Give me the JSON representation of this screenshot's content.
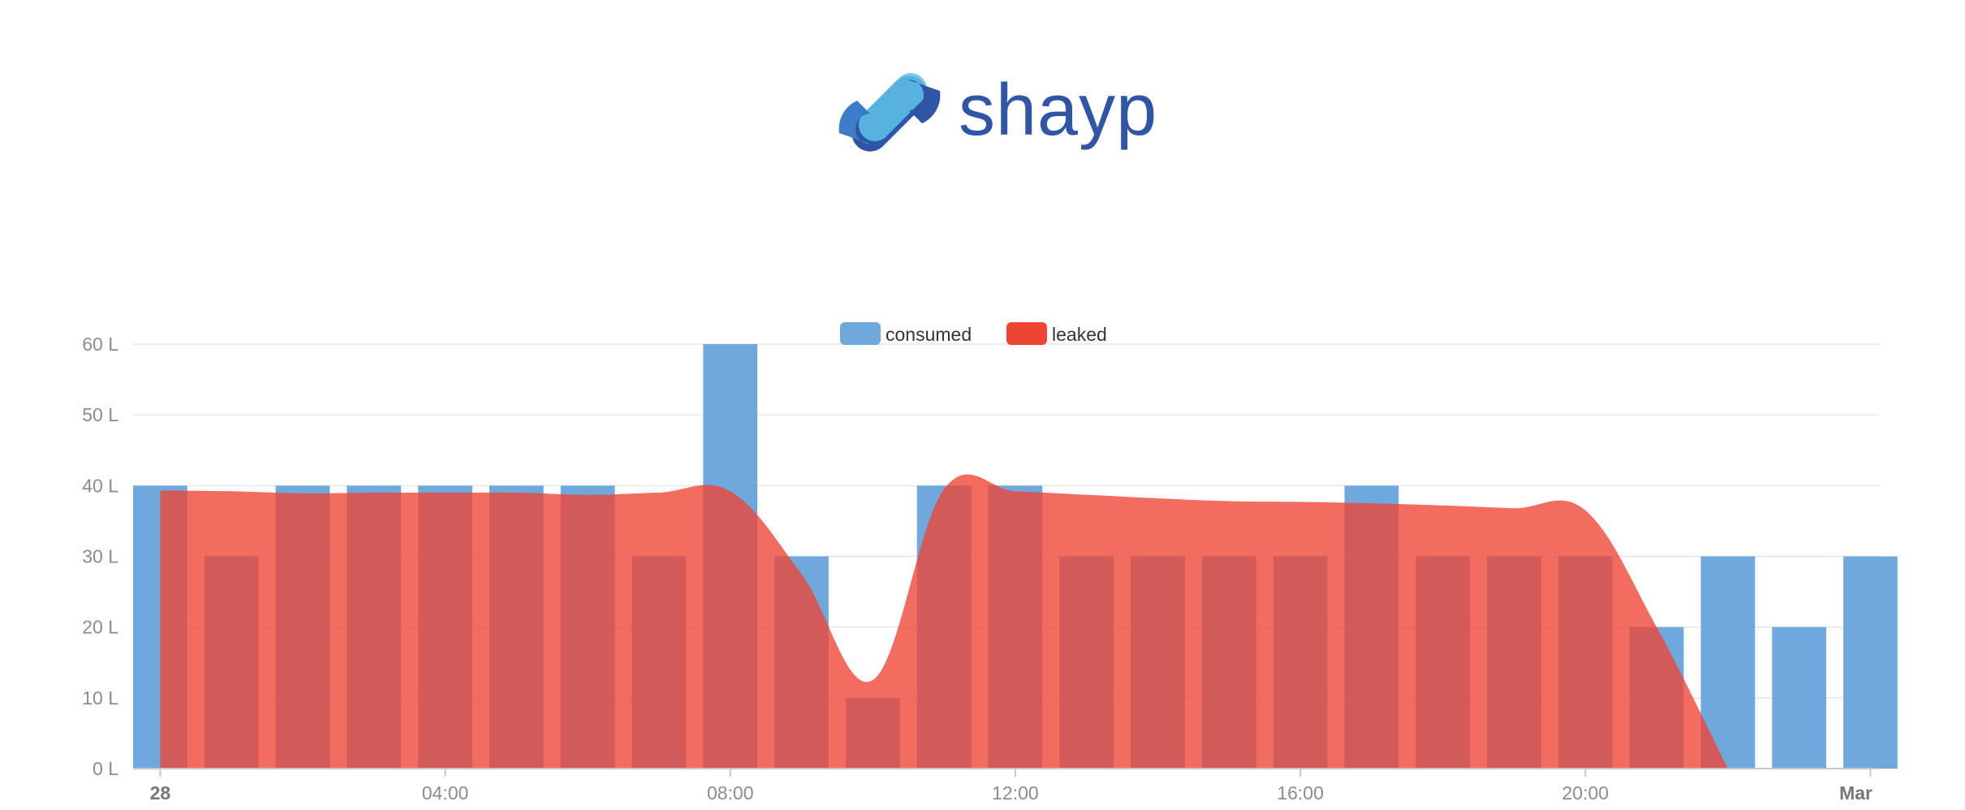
{
  "brand": {
    "name": "shayp",
    "logo_icon": "shayp-link-icon",
    "color_light": "#5ec3e6",
    "color_dark": "#2f56a6"
  },
  "chart_data": {
    "type": "bar",
    "overlay_type": "area",
    "x": [
      "28 00:00",
      "28 01:00",
      "28 02:00",
      "28 03:00",
      "28 04:00",
      "28 05:00",
      "28 06:00",
      "28 07:00",
      "28 08:00",
      "28 09:00",
      "28 10:00",
      "28 11:00",
      "28 12:00",
      "28 13:00",
      "28 14:00",
      "28 15:00",
      "28 16:00",
      "28 17:00",
      "28 18:00",
      "28 19:00",
      "28 20:00",
      "28 21:00",
      "28 22:00",
      "28 23:00",
      "Mar 00:00"
    ],
    "xticks": [
      {
        "label": "28",
        "index": 0,
        "bold": true
      },
      {
        "label": "04:00",
        "index": 4,
        "bold": false
      },
      {
        "label": "08:00",
        "index": 8,
        "bold": false
      },
      {
        "label": "12:00",
        "index": 12,
        "bold": false
      },
      {
        "label": "16:00",
        "index": 16,
        "bold": false
      },
      {
        "label": "20:00",
        "index": 20,
        "bold": false
      },
      {
        "label": "Mar",
        "index": 24,
        "bold": true
      }
    ],
    "yticks": [
      "0 L",
      "10 L",
      "20 L",
      "30 L",
      "40 L",
      "50 L",
      "60 L"
    ],
    "ylim": [
      0,
      60
    ],
    "series": [
      {
        "name": "consumed",
        "type": "bar",
        "color": "#6fa8dc",
        "values": [
          40,
          30,
          40,
          40,
          40,
          40,
          40,
          30,
          60,
          30,
          10,
          40,
          40,
          30,
          30,
          30,
          30,
          40,
          30,
          30,
          30,
          20,
          30,
          20,
          30
        ]
      },
      {
        "name": "leaked",
        "type": "area",
        "color": "#ee4433",
        "values": [
          39.3,
          39.2,
          38.9,
          39.0,
          39.0,
          39.0,
          38.7,
          39.0,
          39.2,
          27.5,
          12.5,
          39.5,
          39.2,
          38.7,
          38.2,
          37.8,
          37.7,
          37.5,
          37.2,
          36.8,
          36.5,
          20.0,
          0.0,
          null,
          null
        ]
      }
    ],
    "legend": {
      "position": "top-center",
      "entries": [
        "consumed",
        "leaked"
      ]
    },
    "grid": true,
    "title": "",
    "xlabel": "",
    "ylabel": ""
  }
}
